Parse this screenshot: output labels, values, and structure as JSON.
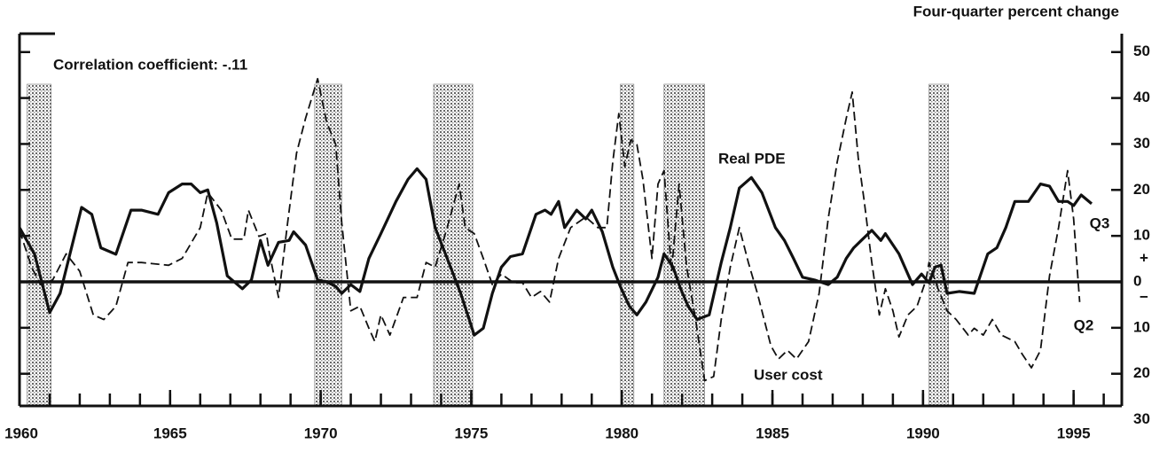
{
  "chart_data": {
    "type": "line",
    "axis_title": "Four-quarter percent change",
    "annotation": "Correlation coefficient: -.11",
    "sign_labels": [
      "+",
      "−"
    ],
    "end_labels": [
      "Q3",
      "Q2"
    ],
    "xlim": [
      1960,
      1996.6
    ],
    "xticks": [
      1960,
      1965,
      1970,
      1975,
      1980,
      1985,
      1990,
      1995
    ],
    "ylim": [
      -27,
      54
    ],
    "yticks": [
      50,
      40,
      30,
      20,
      10,
      0,
      {
        "value": -10,
        "label": "10"
      },
      {
        "value": -20,
        "label": "20"
      },
      {
        "value": -30,
        "label": "30"
      }
    ],
    "recessions": [
      [
        1960.25,
        1961.05
      ],
      [
        1969.8,
        1970.7
      ],
      [
        1973.75,
        1975.05
      ],
      [
        1979.95,
        1980.4
      ],
      [
        1981.4,
        1982.75
      ],
      [
        1990.2,
        1990.85
      ]
    ],
    "series": [
      {
        "name": "Real PDE",
        "color": "#111111",
        "dash": false,
        "x": [
          1960.0,
          1960.5,
          1961.0,
          1961.35,
          1962.06,
          1962.4,
          1962.7,
          1963.2,
          1963.7,
          1964.05,
          1964.6,
          1964.95,
          1965.4,
          1965.7,
          1966.0,
          1966.25,
          1966.55,
          1966.9,
          1967.4,
          1967.7,
          1968.0,
          1968.25,
          1968.6,
          1968.95,
          1969.1,
          1969.5,
          1969.9,
          1970.2,
          1970.5,
          1970.7,
          1971.0,
          1971.3,
          1971.6,
          1972.0,
          1972.5,
          1972.9,
          1973.2,
          1973.5,
          1973.8,
          1974.2,
          1974.65,
          1975.1,
          1975.4,
          1975.7,
          1976.0,
          1976.3,
          1976.7,
          1977.15,
          1977.45,
          1977.65,
          1977.9,
          1978.1,
          1978.5,
          1978.8,
          1979.0,
          1979.35,
          1979.7,
          1979.95,
          1980.25,
          1980.5,
          1980.8,
          1981.2,
          1981.4,
          1981.7,
          1981.95,
          1982.2,
          1982.5,
          1982.9,
          1983.3,
          1983.6,
          1983.9,
          1984.3,
          1984.65,
          1985.1,
          1985.4,
          1985.7,
          1986.0,
          1986.4,
          1986.85,
          1987.15,
          1987.45,
          1987.7,
          1987.95,
          1988.3,
          1988.6,
          1988.75,
          1989.2,
          1989.65,
          1989.95,
          1990.2,
          1990.4,
          1990.6,
          1990.8,
          1991.2,
          1991.7,
          1992.15,
          1992.45,
          1992.75,
          1993.05,
          1993.5,
          1993.9,
          1994.2,
          1994.5,
          1994.8,
          1995.0,
          1995.25,
          1995.6
        ],
        "values": [
          11.8,
          6,
          -6.7,
          -2.5,
          16.2,
          14.7,
          7.4,
          6,
          15.6,
          15.6,
          14.7,
          19.4,
          21.3,
          21.3,
          19.4,
          20,
          12.8,
          1.3,
          -1.5,
          0.4,
          9,
          3.6,
          8.6,
          9,
          10.9,
          8,
          0.4,
          0,
          -1,
          -2.5,
          -0.6,
          -2.1,
          5.1,
          10.5,
          17.5,
          22.3,
          24.6,
          22.3,
          11.8,
          5.1,
          -2.5,
          -11.6,
          -10.1,
          -2.5,
          3.2,
          5.5,
          6.1,
          14.7,
          15.6,
          14.7,
          17.5,
          11.8,
          15.6,
          13.7,
          15.6,
          10.9,
          3.2,
          -1,
          -5.3,
          -7.2,
          -4.4,
          1,
          6.1,
          3.2,
          -1.5,
          -5.3,
          -8.2,
          -7.2,
          4.2,
          11.8,
          20.4,
          22.7,
          19.4,
          11.8,
          9,
          5.1,
          1,
          0.4,
          -0.6,
          1,
          5.1,
          7.4,
          9,
          11.2,
          9,
          10.5,
          6.1,
          -0.6,
          1.7,
          -0.2,
          3.2,
          3.6,
          -2.5,
          -2.1,
          -2.5,
          6.1,
          7.4,
          11.8,
          17.5,
          17.5,
          21.3,
          20.8,
          17.5,
          17.5,
          16.6,
          18.9,
          17
        ]
      },
      {
        "name": "User cost",
        "color": "#111111",
        "dash": true,
        "x": [
          1960.0,
          1960.4,
          1960.7,
          1961.1,
          1961.55,
          1962.0,
          1962.45,
          1962.8,
          1963.2,
          1963.6,
          1964.05,
          1964.95,
          1965.4,
          1966.0,
          1966.25,
          1966.7,
          1967.05,
          1967.45,
          1967.6,
          1967.95,
          1968.2,
          1968.3,
          1968.6,
          1968.9,
          1969.2,
          1969.5,
          1969.9,
          1970.2,
          1970.5,
          1970.7,
          1971.0,
          1971.3,
          1971.6,
          1971.8,
          1972.0,
          1972.3,
          1972.75,
          1973.2,
          1973.5,
          1973.8,
          1974.2,
          1974.6,
          1974.8,
          1975.1,
          1975.4,
          1975.7,
          1976.0,
          1976.4,
          1976.7,
          1977.0,
          1977.3,
          1977.6,
          1977.9,
          1978.3,
          1978.8,
          1979.2,
          1979.5,
          1979.7,
          1979.9,
          1980.1,
          1980.3,
          1980.5,
          1980.7,
          1981.0,
          1981.2,
          1981.4,
          1981.65,
          1981.9,
          1982.15,
          1982.45,
          1982.75,
          1983.05,
          1983.3,
          1983.6,
          1983.9,
          1984.2,
          1984.5,
          1984.95,
          1985.2,
          1985.5,
          1985.8,
          1986.2,
          1986.55,
          1986.85,
          1987.15,
          1987.45,
          1987.65,
          1987.85,
          1988.05,
          1988.3,
          1988.55,
          1988.75,
          1989.0,
          1989.2,
          1989.5,
          1989.8,
          1990.1,
          1990.2,
          1990.5,
          1990.8,
          1991.1,
          1991.5,
          1991.7,
          1992.0,
          1992.3,
          1992.6,
          1993.05,
          1993.3,
          1993.6,
          1993.9,
          1994.2,
          1994.5,
          1994.8,
          1995.0,
          1995.2
        ],
        "values": [
          11.2,
          3.2,
          -0.6,
          0.4,
          6.1,
          2.3,
          -7.2,
          -8.2,
          -5.3,
          4.2,
          4.2,
          3.6,
          5.1,
          11.8,
          19.4,
          15.6,
          9.3,
          9.3,
          15.6,
          9.9,
          10.5,
          6.1,
          -3.4,
          12.8,
          28,
          35.6,
          44.2,
          34.7,
          29.9,
          12.8,
          -6.3,
          -5.3,
          -10.1,
          -13,
          -7.2,
          -11.6,
          -3.4,
          -3.4,
          4.2,
          3.2,
          11.8,
          21.3,
          11.8,
          10.5,
          5.1,
          -0.6,
          1.7,
          -0.2,
          -0.2,
          -3.4,
          -2.1,
          -4.4,
          5.1,
          11.8,
          14.1,
          11.8,
          11.8,
          26.1,
          36.6,
          25.1,
          30.9,
          29.9,
          22.3,
          5.1,
          21.3,
          24.2,
          2.3,
          21.3,
          3.2,
          -8.2,
          -21.5,
          -20.6,
          -8.2,
          3.2,
          11.8,
          4.2,
          -2.5,
          -13.9,
          -16.8,
          -14.9,
          -16.8,
          -13,
          -2.5,
          13.7,
          26.1,
          35.6,
          41.3,
          27,
          17.5,
          4.2,
          -7.2,
          -1.5,
          -6.3,
          -12,
          -7.2,
          -5.3,
          0.4,
          4.2,
          -1.5,
          -6.3,
          -8.2,
          -11.6,
          -10.1,
          -11.6,
          -8.2,
          -11.6,
          -13,
          -15.8,
          -18.7,
          -14.9,
          1.3,
          11.8,
          24.2,
          13.7,
          -4.4
        ]
      }
    ]
  }
}
